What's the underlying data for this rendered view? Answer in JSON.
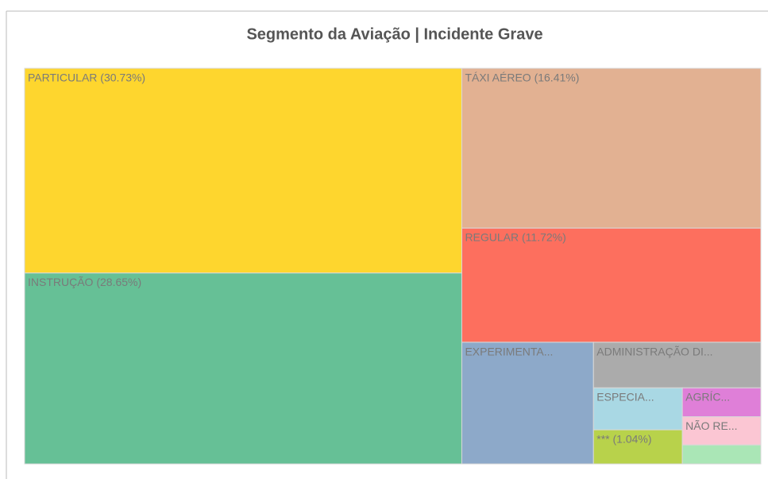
{
  "chart_data": {
    "type": "treemap",
    "title": "Segmento da Aviação | Incidente Grave",
    "labels": [
      "PARTICULAR (30.73%)",
      "INSTRUÇÃO (28.65%)",
      "TÁXI AÉREO (16.41%)",
      "REGULAR (11.72%)",
      "EXPERIMENTA...",
      "ADMINISTRAÇÃO DI...",
      "ESPECIA...",
      "*** (1.04%)",
      "AGRÍC...",
      "NÃO RE...",
      null
    ],
    "values": [
      30.73,
      28.65,
      16.41,
      11.72,
      5.5,
      2.62,
      1.28,
      1.04,
      0.78,
      0.76,
      0.51
    ],
    "colors": [
      "#fed62e",
      "#66c096",
      "#e2b192",
      "#fd6f5e",
      "#8da9c9",
      "#ababab",
      "#a9d8e4",
      "#b8d24b",
      "#df7fd8",
      "#fbc6d3",
      "#aae6b6"
    ]
  }
}
